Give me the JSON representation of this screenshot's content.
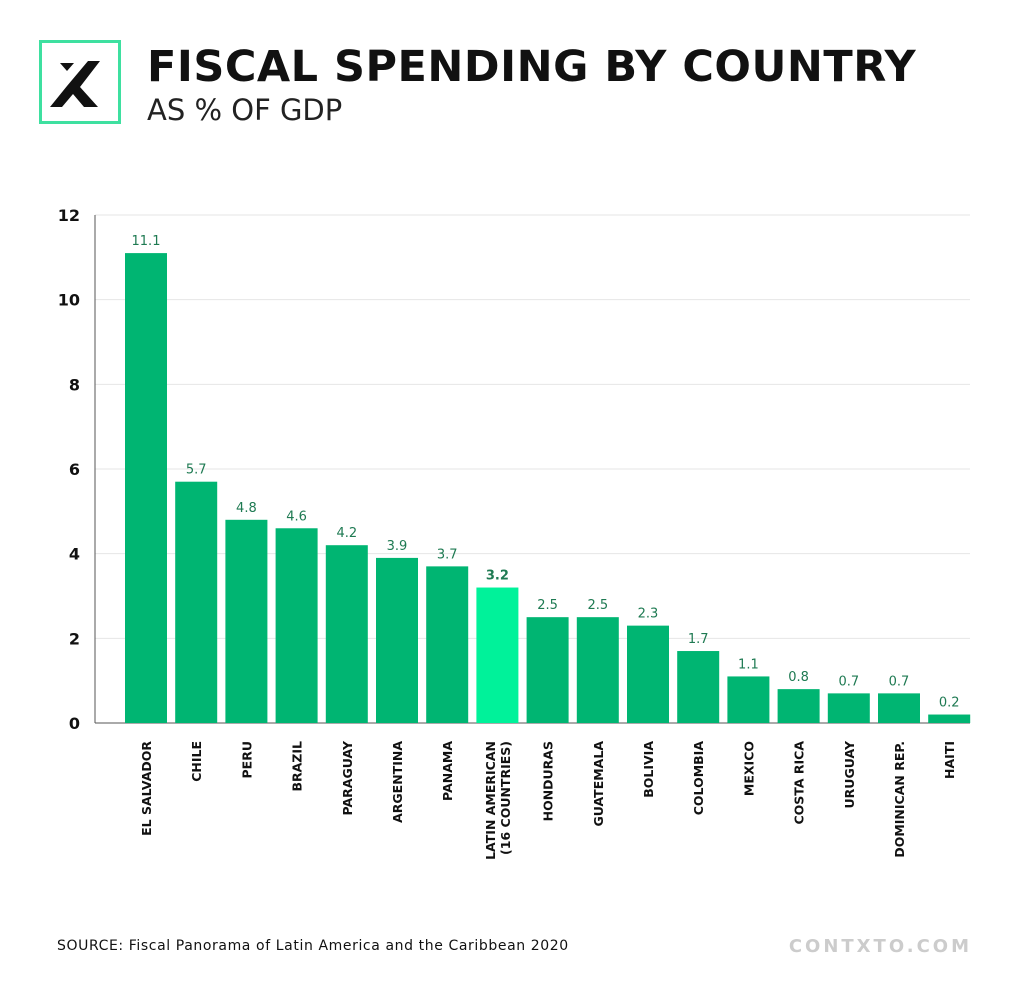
{
  "header": {
    "title": "FISCAL SPENDING BY COUNTRY",
    "subtitle": "AS % OF GDP"
  },
  "footer": {
    "source": "SOURCE: Fiscal Panorama of Latin America and the Caribbean 2020",
    "brand": "CONTXTO.COM"
  },
  "colors": {
    "bar": "#00b572",
    "highlight": "#00f29a",
    "label": "#1e7a52",
    "logo_border": "#3ee0a0"
  },
  "chart_data": {
    "type": "bar",
    "title": "FISCAL SPENDING BY COUNTRY",
    "subtitle": "AS % OF GDP",
    "xlabel": "",
    "ylabel": "",
    "ylim": [
      0,
      12
    ],
    "yticks": [
      0,
      2,
      4,
      6,
      8,
      10,
      12
    ],
    "grid": true,
    "categories": [
      "EL SALVADOR",
      "CHILE",
      "PERU",
      "BRAZIL",
      "PARAGUAY",
      "ARGENTINA",
      "PANAMA",
      "LATIN AMERICAN|(16 COUNTRIES)",
      "HONDURAS",
      "GUATEMALA",
      "BOLIVIA",
      "COLOMBIA",
      "MEXICO",
      "COSTA RICA",
      "URUGUAY",
      "DOMINICAN REP.",
      "HAITI"
    ],
    "values": [
      11.1,
      5.7,
      4.8,
      4.6,
      4.2,
      3.9,
      3.7,
      3.2,
      2.5,
      2.5,
      2.3,
      1.7,
      1.1,
      0.8,
      0.7,
      0.7,
      0.2
    ],
    "data_labels": [
      "11.1",
      "5.7",
      "4.8",
      "4.6",
      "4.2",
      "3.9",
      "3.7",
      "3.2",
      "2.5",
      "2.5",
      "2.3",
      "1.7",
      "1.1",
      "0.8",
      "0.7",
      "0.7",
      "0.2"
    ],
    "highlight_index": 7
  }
}
